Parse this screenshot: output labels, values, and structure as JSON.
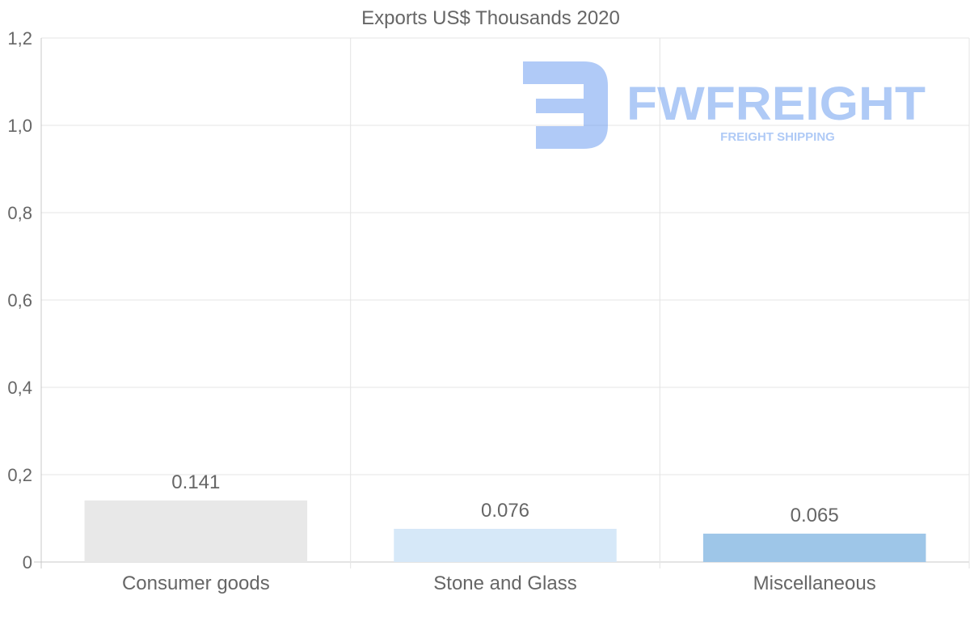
{
  "chart_data": {
    "type": "bar",
    "title": "Exports US$ Thousands 2020",
    "categories": [
      "Consumer goods",
      "Stone and Glass",
      "Miscellaneous"
    ],
    "values": [
      0.141,
      0.076,
      0.065
    ],
    "value_labels": [
      "0.141",
      "0.076",
      "0.065"
    ],
    "bar_colors": [
      "#e8e8e8",
      "#d6e8f8",
      "#9ec6e8"
    ],
    "ylim": [
      0,
      1.2
    ],
    "yticks": [
      0,
      0.2,
      0.4,
      0.6,
      0.8,
      1.0,
      1.2
    ],
    "ytick_labels": [
      "0",
      "0,2",
      "0,4",
      "0,6",
      "0,8",
      "1,0",
      "1,2"
    ],
    "xlabel": "",
    "ylabel": "",
    "grid": true
  },
  "watermark": {
    "brand": "FWFREIGHT",
    "tagline": "FREIGHT SHIPPING",
    "color": "#6f9ff0"
  }
}
